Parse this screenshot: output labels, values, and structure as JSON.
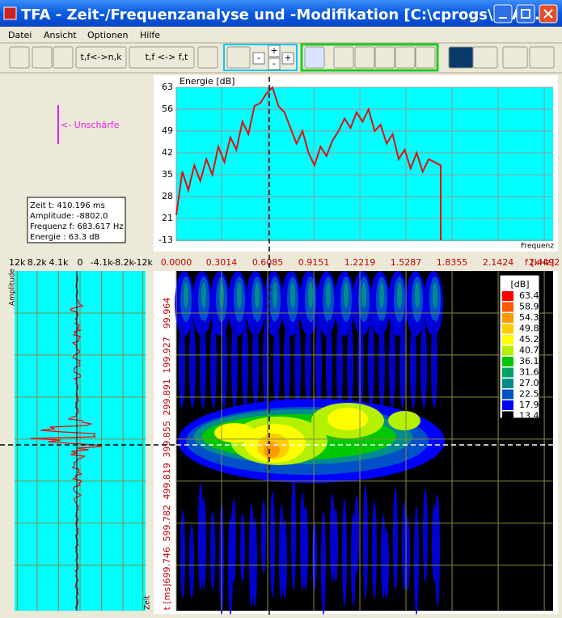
{
  "window": {
    "title": "TFA - Zeit-/Frequenzanalyse und -Modifikation [C:\\cprogs\\ZFA..."
  },
  "menu": [
    "Datei",
    "Ansicht",
    "Optionen",
    "Hilfe"
  ],
  "toolbar": {
    "buttons": [
      "t,f<->n,k",
      "t,f <-> f,t"
    ],
    "zoom": [
      "-",
      "+",
      "-",
      "+"
    ]
  },
  "annotation": "<- Unschärfe",
  "cursor_info": [
    "Zeit t: 410.196 ms",
    "Amplitude: -8802.0",
    "Frequenz f: 683.617 Hz",
    "Energie : 63.3 dB"
  ],
  "spectrum": {
    "type": "line",
    "y_label": "Energie [dB]",
    "x_label": "Frequenz",
    "color": "#dd1111",
    "grid": true,
    "ylim": [
      -13,
      63
    ],
    "yticks": [
      63,
      56,
      49,
      42,
      35,
      28,
      21,
      -13
    ],
    "xlim": [
      0,
      2.508
    ],
    "x": [
      0,
      0.04,
      0.08,
      0.12,
      0.16,
      0.2,
      0.24,
      0.28,
      0.32,
      0.36,
      0.4,
      0.44,
      0.48,
      0.52,
      0.56,
      0.6,
      0.64,
      0.68,
      0.72,
      0.76,
      0.8,
      0.84,
      0.88,
      0.92,
      0.96,
      1.0,
      1.04,
      1.08,
      1.12,
      1.16,
      1.2,
      1.24,
      1.28,
      1.32,
      1.36,
      1.4,
      1.44,
      1.48,
      1.52,
      1.56,
      1.6,
      1.64,
      1.68,
      1.72,
      1.76,
      1.76
    ],
    "values": [
      22,
      36,
      30,
      38,
      33,
      40,
      35,
      44,
      39,
      47,
      43,
      52,
      48,
      57,
      58,
      61,
      63,
      57,
      55,
      50,
      45,
      49,
      42,
      38,
      44,
      41,
      46,
      49,
      53,
      50,
      55,
      52,
      56,
      49,
      51,
      45,
      48,
      40,
      43,
      37,
      42,
      36,
      40,
      39,
      38,
      -13
    ]
  },
  "frequency_axis": {
    "label": "f [kHz]",
    "xlim": [
      0,
      2.508
    ],
    "ticks": [
      {
        "value": 0,
        "label": "0.0000"
      },
      0.3014,
      0.6085,
      0.9151,
      1.2219,
      1.5287,
      1.8355,
      2.1424,
      2.4492
    ]
  },
  "amplitude_axis": {
    "label": "Amplitude",
    "xlim": [
      12500,
      -12500
    ],
    "ticks": [
      {
        "value": 12000,
        "label": "12k"
      },
      {
        "value": 8200,
        "label": "8.2k"
      },
      {
        "value": 4100,
        "label": "4.1k"
      },
      0,
      {
        "value": -4100,
        "label": "-4.1k"
      },
      {
        "value": -8200,
        "label": "-8.2k"
      },
      {
        "value": -12000,
        "label": "-12k"
      }
    ]
  },
  "time_axis": {
    "label": "t [ms]",
    "waveform_label": "Zeit",
    "ylim": [
      0,
      808
    ],
    "ticks": [
      99.964,
      199.927,
      299.891,
      399.855,
      499.819,
      599.782,
      699.746
    ]
  },
  "colorbar": {
    "title": "[dB]",
    "levels": [
      63.4,
      58.9,
      54.3,
      49.8,
      45.2,
      40.7,
      36.1,
      31.6,
      {
        "value": 27,
        "label": "27.0"
      },
      22.5,
      17.9,
      13.4
    ],
    "colors": [
      "#ff0000",
      "#ff5a00",
      "#ff9900",
      "#ffcc00",
      "#ffff00",
      "#b4f000",
      "#00c800",
      "#00a064",
      "#008c8c",
      "#0050c8",
      "#0000ff",
      "#000000"
    ]
  }
}
